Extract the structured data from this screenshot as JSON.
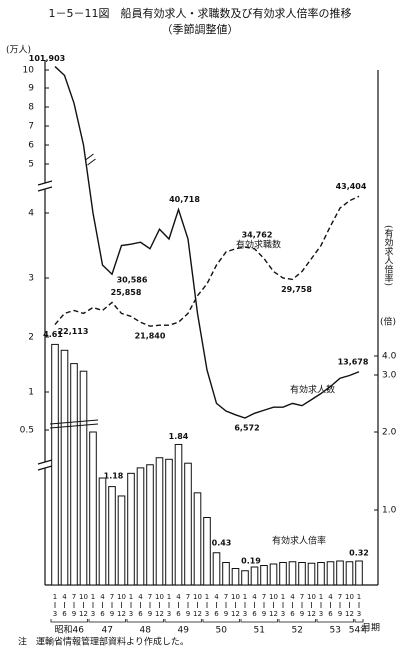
{
  "chart_data": {
    "type": "combo",
    "title": "1－5－11図　船員有効求人・求職数及び有効求人倍率の推移",
    "subtitle": "（季節調整値）",
    "y_label": "(万人)",
    "y2_label": "(有効求人倍率)",
    "y2_unit": "(倍)",
    "period_label": "月期",
    "note": "注　運輸省情報管理部資料より作成した。",
    "categories": [
      [
        "1",
        "3"
      ],
      [
        "4",
        "6"
      ],
      [
        "7",
        "9"
      ],
      [
        "10",
        "12"
      ],
      [
        "1",
        "3"
      ],
      [
        "4",
        "6"
      ],
      [
        "7",
        "9"
      ],
      [
        "10",
        "12"
      ],
      [
        "1",
        "3"
      ],
      [
        "4",
        "6"
      ],
      [
        "7",
        "9"
      ],
      [
        "10",
        "12"
      ],
      [
        "1",
        "3"
      ],
      [
        "4",
        "6"
      ],
      [
        "7",
        "9"
      ],
      [
        "10",
        "12"
      ],
      [
        "1",
        "3"
      ],
      [
        "4",
        "6"
      ],
      [
        "7",
        "9"
      ],
      [
        "10",
        "12"
      ],
      [
        "1",
        "3"
      ],
      [
        "4",
        "6"
      ],
      [
        "7",
        "9"
      ],
      [
        "10",
        "12"
      ],
      [
        "1",
        "3"
      ],
      [
        "4",
        "6"
      ],
      [
        "7",
        "9"
      ],
      [
        "10",
        "12"
      ],
      [
        "1",
        "3"
      ],
      [
        "4",
        "6"
      ],
      [
        "7",
        "9"
      ],
      [
        "10",
        "12"
      ],
      [
        "1",
        "3"
      ]
    ],
    "year_labels": [
      "昭和46",
      "47",
      "48",
      "49",
      "50",
      "51",
      "52",
      "53",
      "54年"
    ],
    "ylim": [
      0.5,
      10
    ],
    "yticks": [
      0.5,
      1,
      2,
      3,
      4,
      5,
      6,
      7,
      8,
      9,
      10
    ],
    "y2lim": [
      0,
      5
    ],
    "y2ticks": [
      {
        "value": 1,
        "label": "1.0"
      },
      {
        "value": 2,
        "label": "2.0"
      },
      {
        "value": 3,
        "label": "3.0"
      },
      {
        "value": 4,
        "label": "4.0"
      }
    ],
    "series": [
      {
        "name": "有効求人倍率",
        "type": "bar",
        "axis": "y2",
        "color": "#111111",
        "values": [
          4.61,
          4.3,
          3.6,
          3.2,
          2.0,
          1.41,
          1.3,
          1.18,
          1.47,
          1.54,
          1.58,
          1.67,
          1.65,
          1.84,
          1.6,
          1.22,
          0.9,
          0.43,
          0.3,
          0.22,
          0.19,
          0.24,
          0.26,
          0.28,
          0.3,
          0.31,
          0.3,
          0.29,
          0.3,
          0.31,
          0.32,
          0.31,
          0.32
        ],
        "value_labels": [
          "4.61",
          null,
          null,
          null,
          null,
          null,
          null,
          "1.18",
          null,
          null,
          null,
          null,
          null,
          "1.84",
          null,
          null,
          null,
          "0.43",
          null,
          null,
          "0.19",
          null,
          null,
          null,
          null,
          null,
          null,
          null,
          null,
          null,
          null,
          null,
          "0.32"
        ]
      },
      {
        "name": "有効求人数",
        "type": "line",
        "style": "solid",
        "color": "#111111",
        "values": [
          10.1903,
          9.7,
          8.2,
          6.0,
          4.0,
          3.2,
          3.0586,
          3.5,
          3.52,
          3.55,
          3.45,
          3.75,
          3.6,
          4.0718,
          3.6,
          2.4,
          1.4,
          0.85,
          0.75,
          0.7,
          0.6572,
          0.72,
          0.76,
          0.8,
          0.8,
          0.85,
          0.82,
          0.9,
          0.98,
          1.1,
          1.25,
          1.3,
          1.3678
        ],
        "value_labels": [
          "101,903",
          null,
          null,
          null,
          null,
          null,
          "30,586",
          null,
          null,
          null,
          null,
          null,
          null,
          "40,718",
          null,
          null,
          null,
          null,
          null,
          null,
          "6,572",
          null,
          null,
          null,
          null,
          null,
          null,
          null,
          null,
          null,
          null,
          null,
          "13,678"
        ]
      },
      {
        "name": "有効求職数",
        "type": "line",
        "style": "dashed",
        "color": "#111111",
        "values": [
          2.2113,
          2.4,
          2.45,
          2.4,
          2.5,
          2.45,
          2.5858,
          2.4,
          2.35,
          2.25,
          2.184,
          2.2,
          2.2,
          2.25,
          2.4,
          2.7,
          2.9,
          3.2,
          3.4,
          3.45,
          3.4762,
          3.45,
          3.3,
          3.1,
          3.0,
          2.9758,
          3.1,
          3.3,
          3.5,
          3.8,
          4.1,
          4.25,
          4.3404
        ],
        "value_labels": [
          "22,113",
          null,
          null,
          null,
          null,
          null,
          "25,858",
          null,
          null,
          null,
          "21,840",
          null,
          null,
          null,
          null,
          null,
          null,
          null,
          null,
          null,
          "34,762",
          null,
          null,
          null,
          null,
          "29,758",
          null,
          null,
          null,
          null,
          null,
          null,
          "43,404"
        ]
      }
    ]
  }
}
